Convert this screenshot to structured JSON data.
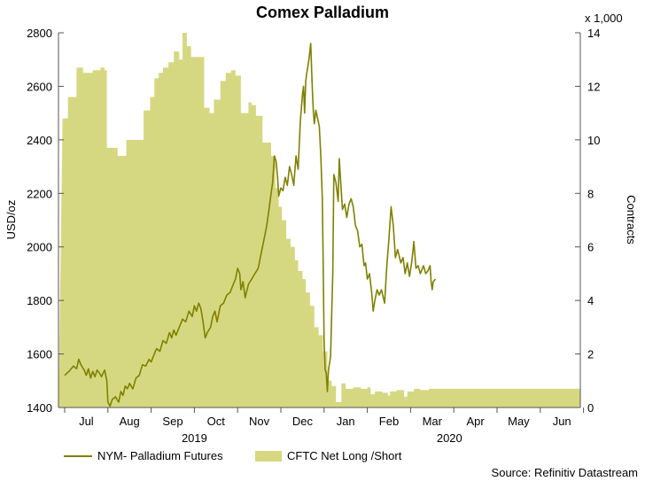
{
  "chart_data": {
    "type": "line_with_area",
    "title": "Comex Palladium",
    "source": "Source: Refinitiv Datastream",
    "y_left": {
      "label": "USD/oz",
      "min": 1400,
      "max": 2800,
      "ticks": [
        1400,
        1600,
        1800,
        2000,
        2200,
        2400,
        2600,
        2800
      ]
    },
    "y_right": {
      "label": "Contracts",
      "multiplier_label": "x 1,000",
      "min": 0,
      "max": 14,
      "ticks": [
        0,
        2,
        4,
        6,
        8,
        10,
        12,
        14
      ]
    },
    "x_axis": {
      "months": [
        "Jul",
        "Aug",
        "Sep",
        "Oct",
        "Nov",
        "Dec",
        "Jan",
        "Feb",
        "Mar",
        "Apr",
        "May",
        "Jun"
      ],
      "years": [
        {
          "label": "2019",
          "center_month": 3
        },
        {
          "label": "2020",
          "center_month": 8.9
        }
      ]
    },
    "series": [
      {
        "name": "NYM- Palladium Futures",
        "kind": "line",
        "axis": "left",
        "color": "#808000",
        "points": [
          [
            0.0,
            1520
          ],
          [
            0.2,
            1535
          ],
          [
            0.4,
            1555
          ],
          [
            0.55,
            1545
          ],
          [
            0.65,
            1580
          ],
          [
            0.75,
            1560
          ],
          [
            0.9,
            1540
          ],
          [
            1.0,
            1520
          ],
          [
            1.1,
            1545
          ],
          [
            1.2,
            1510
          ],
          [
            1.3,
            1535
          ],
          [
            1.4,
            1515
          ],
          [
            1.5,
            1540
          ],
          [
            1.6,
            1530
          ],
          [
            1.7,
            1515
          ],
          [
            1.85,
            1540
          ],
          [
            1.95,
            1500
          ],
          [
            2.0,
            1420
          ],
          [
            2.1,
            1405
          ],
          [
            2.2,
            1430
          ],
          [
            2.35,
            1440
          ],
          [
            2.5,
            1420
          ],
          [
            2.6,
            1460
          ],
          [
            2.7,
            1445
          ],
          [
            2.8,
            1480
          ],
          [
            2.9,
            1470
          ],
          [
            3.0,
            1490
          ],
          [
            3.15,
            1470
          ],
          [
            3.3,
            1510
          ],
          [
            3.45,
            1520
          ],
          [
            3.6,
            1560
          ],
          [
            3.75,
            1555
          ],
          [
            3.9,
            1580
          ],
          [
            4.0,
            1570
          ],
          [
            4.1,
            1590
          ],
          [
            4.25,
            1620
          ],
          [
            4.4,
            1610
          ],
          [
            4.55,
            1650
          ],
          [
            4.7,
            1640
          ],
          [
            4.85,
            1680
          ],
          [
            4.95,
            1660
          ],
          [
            5.05,
            1690
          ],
          [
            5.15,
            1670
          ],
          [
            5.3,
            1700
          ],
          [
            5.45,
            1730
          ],
          [
            5.6,
            1720
          ],
          [
            5.75,
            1760
          ],
          [
            5.9,
            1740
          ],
          [
            6.0,
            1780
          ],
          [
            6.1,
            1760
          ],
          [
            6.2,
            1790
          ],
          [
            6.3,
            1770
          ],
          [
            6.4,
            1720
          ],
          [
            6.5,
            1660
          ],
          [
            6.6,
            1680
          ],
          [
            6.75,
            1700
          ],
          [
            6.85,
            1740
          ],
          [
            6.95,
            1760
          ],
          [
            7.05,
            1720
          ],
          [
            7.2,
            1780
          ],
          [
            7.35,
            1790
          ],
          [
            7.5,
            1820
          ],
          [
            7.65,
            1830
          ],
          [
            7.8,
            1860
          ],
          [
            7.9,
            1880
          ],
          [
            8.0,
            1920
          ],
          [
            8.1,
            1900
          ],
          [
            8.15,
            1840
          ],
          [
            8.25,
            1870
          ],
          [
            8.35,
            1810
          ],
          [
            8.5,
            1860
          ],
          [
            8.65,
            1880
          ],
          [
            8.8,
            1900
          ],
          [
            8.95,
            1920
          ],
          [
            9.05,
            1960
          ],
          [
            9.2,
            2020
          ],
          [
            9.35,
            2080
          ],
          [
            9.45,
            2140
          ],
          [
            9.55,
            2200
          ],
          [
            9.62,
            2240
          ],
          [
            9.7,
            2340
          ],
          [
            9.78,
            2320
          ],
          [
            9.85,
            2260
          ],
          [
            9.9,
            2190
          ],
          [
            10.0,
            2220
          ],
          [
            10.1,
            2210
          ],
          [
            10.2,
            2260
          ],
          [
            10.3,
            2230
          ],
          [
            10.4,
            2300
          ],
          [
            10.5,
            2270
          ],
          [
            10.6,
            2230
          ],
          [
            10.7,
            2340
          ],
          [
            10.8,
            2290
          ],
          [
            10.9,
            2470
          ],
          [
            11.0,
            2570
          ],
          [
            11.05,
            2600
          ],
          [
            11.1,
            2500
          ],
          [
            11.15,
            2620
          ],
          [
            11.2,
            2650
          ],
          [
            11.3,
            2700
          ],
          [
            11.38,
            2760
          ],
          [
            11.45,
            2600
          ],
          [
            11.5,
            2510
          ],
          [
            11.55,
            2460
          ],
          [
            11.62,
            2510
          ],
          [
            11.7,
            2480
          ],
          [
            11.78,
            2450
          ],
          [
            11.85,
            2340
          ],
          [
            11.92,
            2180
          ],
          [
            11.95,
            1980
          ],
          [
            12.0,
            1650
          ],
          [
            12.05,
            1540
          ],
          [
            12.1,
            1530
          ],
          [
            12.15,
            1460
          ],
          [
            12.2,
            1540
          ],
          [
            12.3,
            1590
          ],
          [
            12.4,
            1900
          ],
          [
            12.45,
            2270
          ],
          [
            12.55,
            2240
          ],
          [
            12.65,
            2170
          ],
          [
            12.7,
            2330
          ],
          [
            12.78,
            2230
          ],
          [
            12.85,
            2140
          ],
          [
            12.95,
            2160
          ],
          [
            13.05,
            2110
          ],
          [
            13.15,
            2160
          ],
          [
            13.25,
            2180
          ],
          [
            13.35,
            2150
          ],
          [
            13.45,
            2080
          ],
          [
            13.55,
            2060
          ],
          [
            13.65,
            2000
          ],
          [
            13.75,
            2010
          ],
          [
            13.85,
            1930
          ],
          [
            13.92,
            1940
          ],
          [
            14.0,
            1880
          ],
          [
            14.1,
            1900
          ],
          [
            14.2,
            1830
          ],
          [
            14.27,
            1760
          ],
          [
            14.35,
            1800
          ],
          [
            14.45,
            1840
          ],
          [
            14.55,
            1820
          ],
          [
            14.65,
            1840
          ],
          [
            14.8,
            1790
          ],
          [
            14.9,
            1930
          ],
          [
            15.0,
            2030
          ],
          [
            15.1,
            2150
          ],
          [
            15.2,
            2080
          ],
          [
            15.3,
            1960
          ],
          [
            15.4,
            1990
          ],
          [
            15.55,
            1940
          ],
          [
            15.65,
            1960
          ],
          [
            15.75,
            1900
          ],
          [
            15.85,
            1940
          ],
          [
            15.95,
            1890
          ],
          [
            16.05,
            1940
          ],
          [
            16.15,
            2020
          ],
          [
            16.25,
            1920
          ],
          [
            16.35,
            1930
          ],
          [
            16.45,
            1900
          ],
          [
            16.6,
            1930
          ],
          [
            16.7,
            1900
          ],
          [
            16.8,
            1910
          ],
          [
            16.9,
            1930
          ],
          [
            16.95,
            1870
          ],
          [
            17.0,
            1840
          ],
          [
            17.05,
            1870
          ],
          [
            17.15,
            1880
          ]
        ]
      },
      {
        "name": "CFTC Net Long /Short",
        "kind": "area",
        "axis": "right",
        "color": "#d6d881",
        "steps": [
          [
            -0.1,
            10.8
          ],
          [
            0.15,
            11.6
          ],
          [
            0.55,
            12.7
          ],
          [
            0.85,
            12.5
          ],
          [
            1.3,
            12.6
          ],
          [
            1.65,
            12.7
          ],
          [
            1.85,
            12.6
          ],
          [
            1.95,
            9.7
          ],
          [
            2.45,
            9.4
          ],
          [
            2.85,
            10.0
          ],
          [
            3.45,
            10.0
          ],
          [
            3.65,
            11.1
          ],
          [
            3.95,
            11.6
          ],
          [
            4.15,
            12.3
          ],
          [
            4.35,
            12.5
          ],
          [
            4.55,
            12.7
          ],
          [
            4.8,
            12.9
          ],
          [
            5.05,
            13.3
          ],
          [
            5.3,
            13.0
          ],
          [
            5.45,
            14.0
          ],
          [
            5.65,
            13.5
          ],
          [
            5.85,
            13.1
          ],
          [
            6.2,
            13.1
          ],
          [
            6.45,
            11.2
          ],
          [
            6.7,
            11.0
          ],
          [
            6.9,
            11.5
          ],
          [
            7.2,
            12.2
          ],
          [
            7.45,
            12.5
          ],
          [
            7.7,
            12.6
          ],
          [
            7.9,
            12.4
          ],
          [
            8.15,
            11.0
          ],
          [
            8.35,
            11.0
          ],
          [
            8.5,
            11.4
          ],
          [
            8.65,
            11.3
          ],
          [
            8.85,
            10.9
          ],
          [
            9.15,
            9.9
          ],
          [
            9.55,
            9.4
          ],
          [
            9.75,
            8.2
          ],
          [
            9.9,
            7.5
          ],
          [
            10.05,
            7.0
          ],
          [
            10.25,
            6.3
          ],
          [
            10.45,
            6.0
          ],
          [
            10.65,
            5.5
          ],
          [
            10.8,
            5.1
          ],
          [
            11.0,
            4.8
          ],
          [
            11.15,
            4.3
          ],
          [
            11.35,
            3.8
          ],
          [
            11.55,
            3.0
          ],
          [
            11.75,
            2.7
          ],
          [
            11.95,
            2.1
          ],
          [
            12.15,
            1.0
          ],
          [
            12.35,
            0.8
          ],
          [
            12.55,
            0.2
          ],
          [
            12.8,
            0.9
          ],
          [
            13.0,
            0.7
          ],
          [
            13.35,
            0.75
          ],
          [
            13.7,
            0.7
          ],
          [
            14.0,
            0.75
          ],
          [
            14.15,
            0.5
          ],
          [
            14.35,
            0.6
          ],
          [
            14.7,
            0.55
          ],
          [
            14.95,
            0.45
          ],
          [
            15.05,
            0.6
          ],
          [
            15.35,
            0.65
          ],
          [
            15.7,
            0.4
          ],
          [
            15.85,
            0.6
          ],
          [
            16.15,
            0.7
          ],
          [
            16.45,
            0.65
          ],
          [
            16.85,
            0.7
          ],
          [
            17.2,
            0.7
          ]
        ]
      }
    ],
    "legend": [
      {
        "label": "NYM- Palladium Futures",
        "kind": "line"
      },
      {
        "label": "CFTC Net Long /Short",
        "kind": "area"
      }
    ]
  }
}
